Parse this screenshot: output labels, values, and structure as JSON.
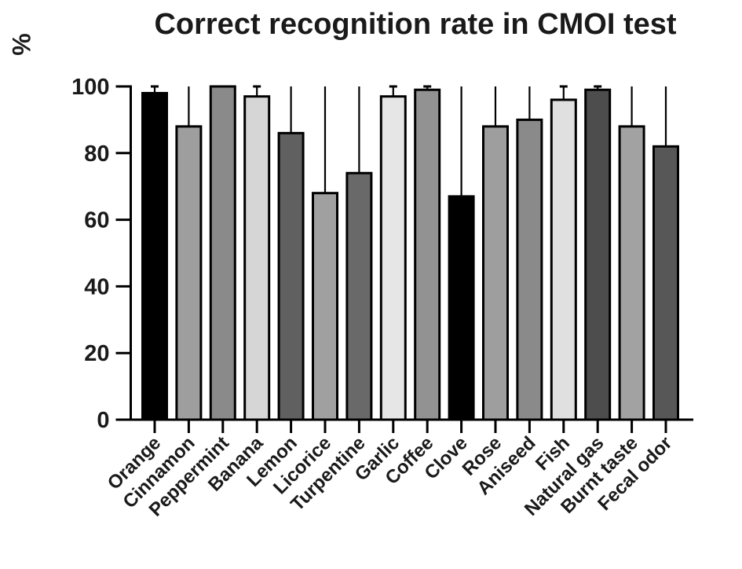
{
  "chart_data": {
    "type": "bar",
    "title": "Correct recognition rate in CMOI test",
    "ylabel": "%",
    "xlabel": "",
    "categories": [
      "Orange",
      "Cinnamon",
      "Peppermint",
      "Banana",
      "Lemon",
      "Licorice",
      "Turpentine",
      "Garlic",
      "Coffee",
      "Clove",
      "Rose",
      "Aniseed",
      "Fish",
      "Natural gas",
      "Burnt taste",
      "Fecal odor"
    ],
    "values": [
      98,
      88,
      100,
      97,
      86,
      68,
      74,
      97,
      99,
      67,
      88,
      90,
      96,
      99,
      88,
      82
    ],
    "error_bar_tops": [
      100,
      100,
      100,
      100,
      100,
      100,
      100,
      100,
      100,
      100,
      100,
      100,
      100,
      100,
      100,
      100
    ],
    "bar_colors": [
      "#000000",
      "#9e9e9e",
      "#8a8a8a",
      "#d6d6d6",
      "#606060",
      "#a0a0a0",
      "#696969",
      "#e6e6e6",
      "#929292",
      "#000000",
      "#9e9e9e",
      "#8a8a8a",
      "#e0e0e0",
      "#4d4d4d",
      "#a2a2a2",
      "#575757"
    ],
    "bar_outline_color": "#000000",
    "axis_color": "#000000",
    "text_color": "#1a1a1a",
    "background_color": "#ffffff",
    "yticks": [
      0,
      20,
      40,
      60,
      80,
      100
    ],
    "ylim": [
      0,
      100
    ],
    "grid": false,
    "legend": "none",
    "error_bar_direction": "upper"
  }
}
